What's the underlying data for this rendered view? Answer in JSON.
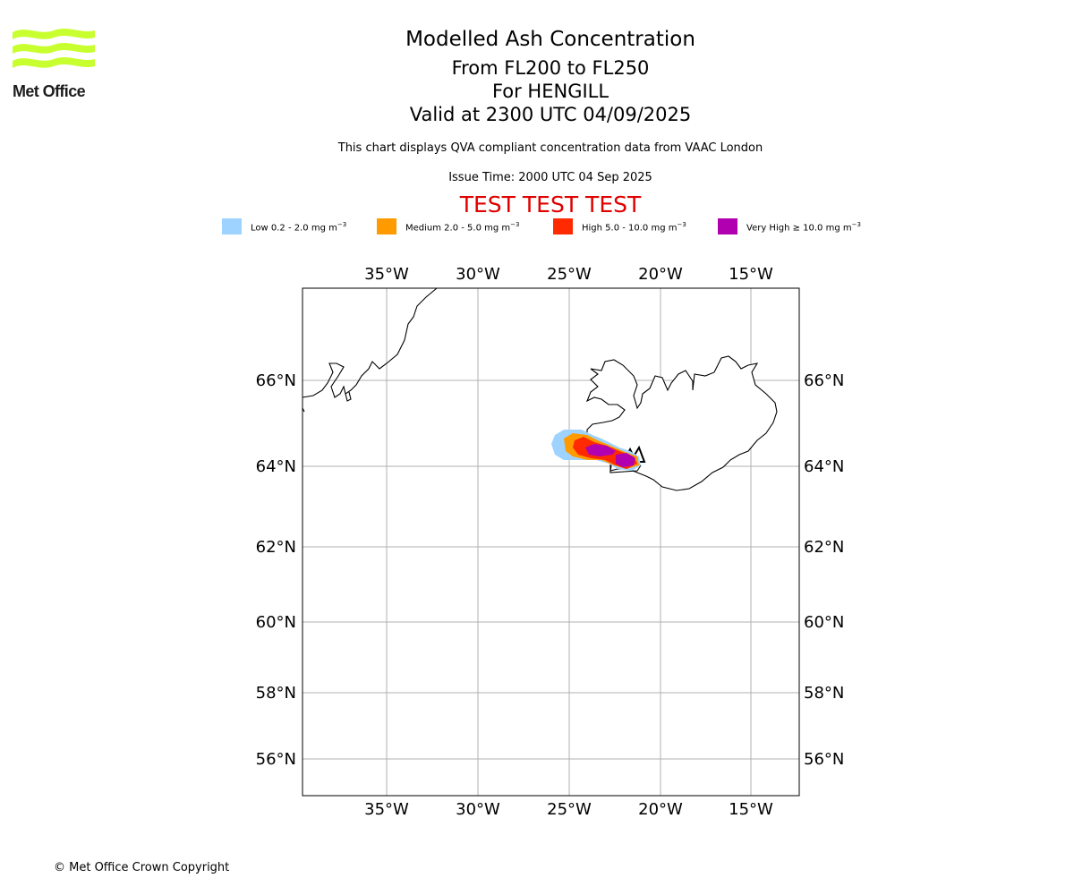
{
  "header": {
    "logo_text": "Met Office",
    "title": "Modelled Ash Concentration",
    "levels": "From FL200 to FL250",
    "volcano": "For HENGILL",
    "valid": "Valid at 2300 UTC 04/09/2025",
    "note": "This chart displays QVA compliant concentration data from VAAC London",
    "issue": "Issue Time: 2000 UTC 04 Sep 2025",
    "test_banner": "TEST TEST TEST"
  },
  "legend": [
    {
      "label": "Low 0.2 - 2.0 mg m",
      "unit_power": "−3",
      "color": "#9fd3ff"
    },
    {
      "label": "Medium 2.0 - 5.0 mg m",
      "unit_power": "−3",
      "color": "#ff9a00"
    },
    {
      "label": "High 5.0 - 10.0 mg m",
      "unit_power": "−3",
      "color": "#ff2a00"
    },
    {
      "label": "Very High  ≥  10.0 mg m",
      "unit_power": "−3",
      "color": "#b000b0"
    }
  ],
  "map": {
    "lon_ticks": [
      "35°W",
      "30°W",
      "25°W",
      "20°W",
      "15°W"
    ],
    "lat_ticks": [
      "66°N",
      "64°N",
      "62°N",
      "60°N",
      "58°N",
      "56°N"
    ],
    "gridline_color": "#b0b0b0",
    "coastline_color": "#000000"
  },
  "footer": {
    "copyright": "© Met Office Crown Copyright"
  }
}
